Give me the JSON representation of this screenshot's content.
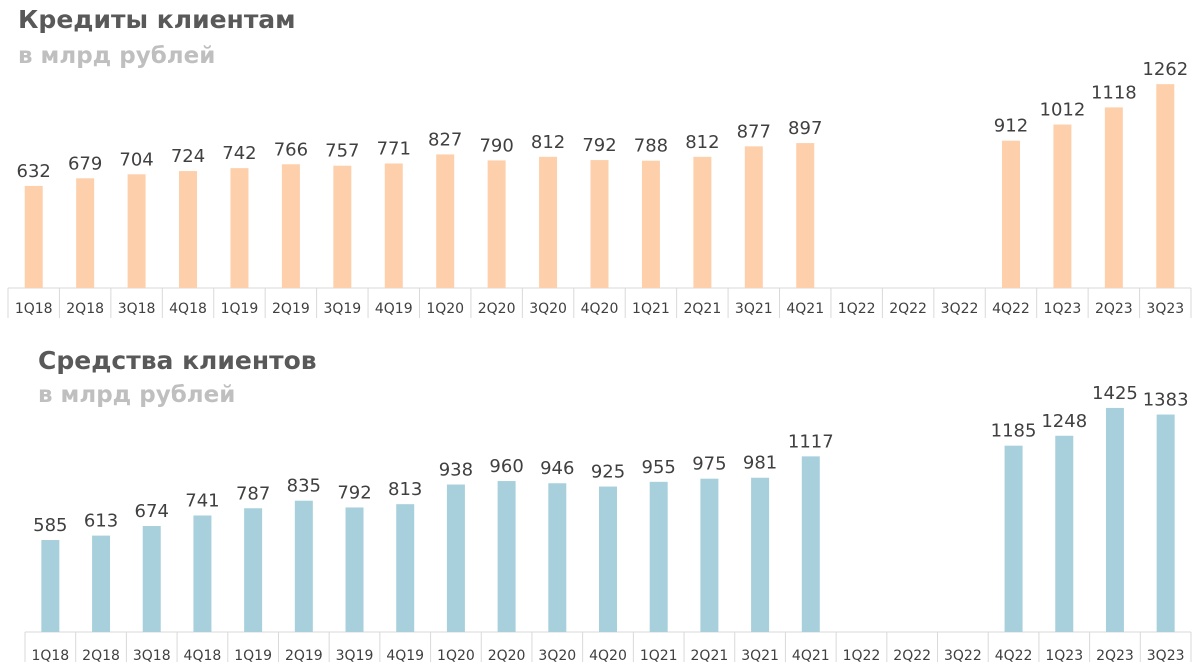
{
  "chart_data": [
    {
      "type": "bar",
      "title": "Кредиты клиентам",
      "subtitle": "в млрд рублей",
      "color": "#fdd0ab",
      "categories": [
        "1Q18",
        "2Q18",
        "3Q18",
        "4Q18",
        "1Q19",
        "2Q19",
        "3Q19",
        "4Q19",
        "1Q20",
        "2Q20",
        "3Q20",
        "4Q20",
        "1Q21",
        "2Q21",
        "3Q21",
        "4Q21",
        "1Q22",
        "2Q22",
        "3Q22",
        "4Q22",
        "1Q23",
        "2Q23",
        "3Q23"
      ],
      "values": [
        632,
        679,
        704,
        724,
        742,
        766,
        757,
        771,
        827,
        790,
        812,
        792,
        788,
        812,
        877,
        897,
        null,
        null,
        null,
        912,
        1012,
        1118,
        1262
      ],
      "labels": [
        "632",
        "679",
        "704",
        "724",
        "742",
        "766",
        "757",
        "771",
        "827",
        "790",
        "812",
        "792",
        "788",
        "812",
        "877",
        "897",
        "",
        "",
        "",
        "912",
        "1012",
        "1118",
        "1262"
      ],
      "ylim": [
        0,
        1300
      ],
      "xlabel": "",
      "ylabel": ""
    },
    {
      "type": "bar",
      "title": "Средства клиентов",
      "subtitle": "в млрд рублей",
      "color": "#a8d0dc",
      "categories": [
        "1Q18",
        "2Q18",
        "3Q18",
        "4Q18",
        "1Q19",
        "2Q19",
        "3Q19",
        "4Q19",
        "1Q20",
        "2Q20",
        "3Q20",
        "4Q20",
        "1Q21",
        "2Q21",
        "3Q21",
        "4Q21",
        "1Q22",
        "2Q22",
        "3Q22",
        "4Q22",
        "1Q23",
        "2Q23",
        "3Q23"
      ],
      "values": [
        585,
        613,
        674,
        741,
        787,
        835,
        792,
        813,
        938,
        960,
        946,
        925,
        955,
        975,
        981,
        1117,
        null,
        null,
        null,
        1185,
        1248,
        1425,
        1383
      ],
      "labels": [
        "585",
        "613",
        "674",
        "741",
        "787",
        "835",
        "792",
        "813",
        "938",
        "960",
        "946",
        "925",
        "955",
        "975",
        "981",
        "1117",
        "",
        "",
        "",
        "1185",
        "1248",
        "1425",
        "1383"
      ],
      "ylim": [
        0,
        1450
      ],
      "xlabel": "",
      "ylabel": ""
    }
  ]
}
